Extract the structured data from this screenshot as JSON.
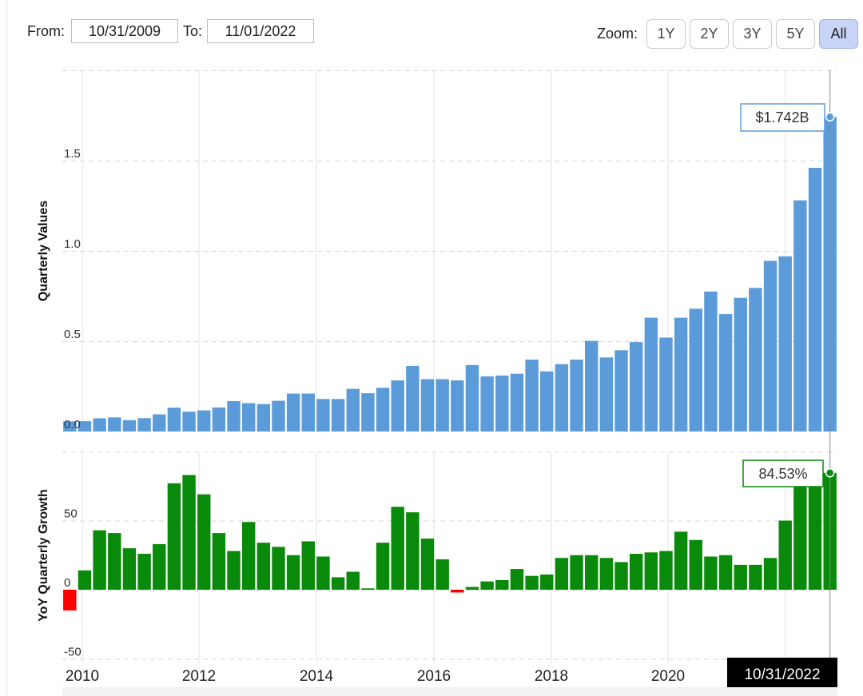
{
  "range": {
    "from_label": "From:",
    "from_value": "10/31/2009",
    "to_label": "To:",
    "to_value": "11/01/2022"
  },
  "zoom": {
    "label": "Zoom:",
    "buttons": [
      "1Y",
      "2Y",
      "3Y",
      "5Y",
      "All"
    ],
    "active": "All"
  },
  "colors": {
    "bar_blue": "#5b9bd9",
    "bar_green": "#0a8a0a",
    "bar_red": "#ff0000",
    "grid": "#e3e3e3",
    "tooltip_blue_border": "#5b9bd9",
    "tooltip_green_border": "#0a8a0a"
  },
  "chart_data": [
    {
      "type": "bar",
      "ylabel": "Quarterly Values",
      "yticks": [
        "0.0",
        "0.5",
        "1.0",
        "1.5"
      ],
      "ylim": [
        0,
        2.0
      ],
      "x_start": "2010-01",
      "x_tick_labels": [
        "2010",
        "2012",
        "2014",
        "2016",
        "2018",
        "2020"
      ],
      "values": [
        0.056,
        0.057,
        0.073,
        0.078,
        0.063,
        0.074,
        0.095,
        0.132,
        0.11,
        0.117,
        0.133,
        0.168,
        0.157,
        0.152,
        0.17,
        0.21,
        0.21,
        0.18,
        0.18,
        0.236,
        0.212,
        0.242,
        0.283,
        0.363,
        0.29,
        0.29,
        0.283,
        0.368,
        0.305,
        0.31,
        0.32,
        0.398,
        0.333,
        0.373,
        0.398,
        0.502,
        0.41,
        0.45,
        0.495,
        0.63,
        0.52,
        0.63,
        0.68,
        0.775,
        0.65,
        0.74,
        0.795,
        0.945,
        0.97,
        1.28,
        1.46,
        1.742
      ],
      "tooltip": "$1.742B",
      "grid": true
    },
    {
      "type": "bar",
      "ylabel": "YoY Quarterly Growth",
      "yticks": [
        "-50",
        "0",
        "50"
      ],
      "ylim": [
        -50,
        100
      ],
      "values": [
        -15,
        14,
        43,
        41,
        30,
        26,
        33,
        77,
        83,
        69,
        41,
        28,
        49,
        34,
        31,
        25,
        35,
        24,
        9,
        13,
        1,
        34,
        60,
        56,
        37,
        22,
        -2,
        2,
        6,
        7,
        15,
        10,
        11,
        23,
        25,
        25,
        23,
        20,
        26,
        27,
        28,
        42,
        36,
        24,
        25,
        18,
        18,
        23,
        50,
        84,
        84,
        84.53
      ],
      "tooltip": "84.53%",
      "date_label": "10/31/2022",
      "grid": true
    }
  ]
}
